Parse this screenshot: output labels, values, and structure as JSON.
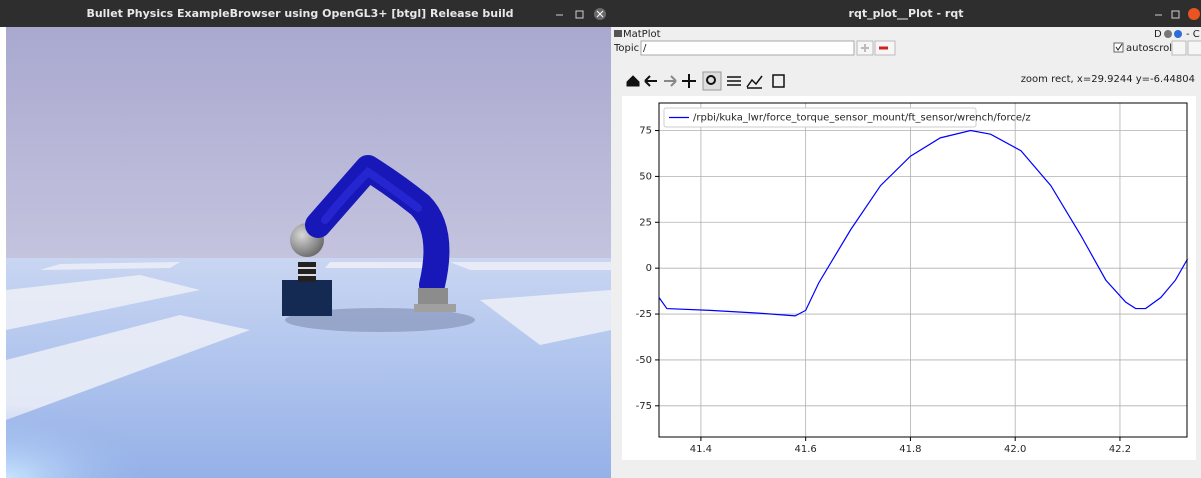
{
  "left_window": {
    "title": "Bullet Physics ExampleBrowser using OpenGL3+ [btgl] Release build"
  },
  "right_window": {
    "title": "rqt_plot__Plot - rqt",
    "plugin_title": "MatPlot",
    "dock_label": "D",
    "dock_close": "- C",
    "topic_label": "Topic",
    "topic_value": "/",
    "autoscroll": "autoscroll",
    "status": "zoom rect, x=29.9244     y=-6.44804"
  },
  "plot": {
    "type": "line",
    "grid": true,
    "x": [
      41.32,
      41.335,
      41.418,
      41.51,
      41.58,
      41.6,
      41.625,
      41.686,
      41.743,
      41.8,
      41.857,
      41.915,
      41.953,
      42.011,
      42.068,
      42.125,
      42.173,
      42.211,
      42.23,
      42.249,
      42.278,
      42.306,
      42.329
    ],
    "series": [
      {
        "name": "/rpbi/kuka_lwr/force_torque_sensor_mount/ft_sensor/wrench/force/z",
        "color": "#0000ff",
        "values": [
          -16,
          -22,
          -23,
          -24.5,
          -26,
          -23,
          -8,
          21,
          45,
          61,
          71,
          75,
          73,
          64,
          45,
          18,
          -6.5,
          -18.5,
          -22,
          -22,
          -16,
          -6.5,
          5
        ]
      }
    ],
    "xlim": [
      41.32,
      42.328
    ],
    "ylim": [
      -92,
      90
    ],
    "xticks": [
      41.4,
      41.6,
      41.8,
      {
        "value": 42,
        "label": "42.0"
      },
      42.2
    ],
    "yticks": [
      75,
      50,
      25,
      0,
      -25,
      -50,
      -75
    ]
  }
}
